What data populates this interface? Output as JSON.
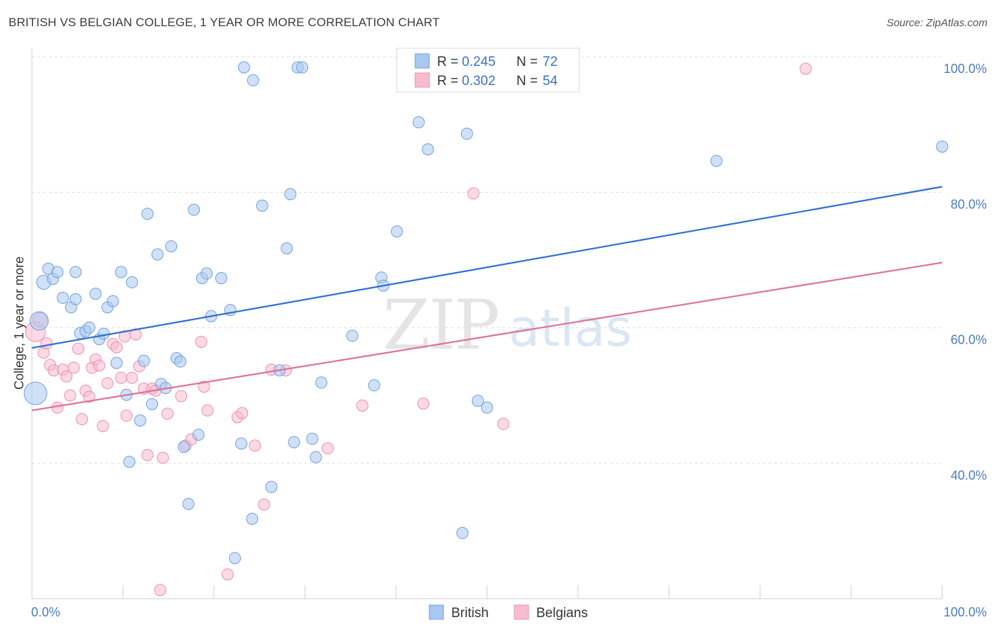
{
  "title": "BRITISH VS BELGIAN COLLEGE, 1 YEAR OR MORE CORRELATION CHART",
  "source": "Source: ZipAtlas.com",
  "watermark": {
    "zip": "ZIP",
    "atlas": "atlas"
  },
  "colors": {
    "british_fill": "#a9c8f0",
    "british_stroke": "#6f9fe0",
    "british_line": "#2f6fd0",
    "belgian_fill": "#f7bcd0",
    "belgian_stroke": "#ea8fae",
    "belgian_line": "#e07098",
    "grid": "#dddddd",
    "axis_label": "#4a7cc7"
  },
  "legend": {
    "rows": [
      {
        "r_label": "R = ",
        "r_value": "0.245",
        "n_label": "N = ",
        "n_value": "72",
        "series": "british"
      },
      {
        "r_label": "R = ",
        "r_value": "0.302",
        "n_label": "N = ",
        "n_value": "54",
        "series": "belgian"
      }
    ]
  },
  "chart_data": {
    "type": "scatter",
    "title": "BRITISH VS BELGIAN COLLEGE, 1 YEAR OR MORE CORRELATION CHART",
    "xlabel": "",
    "ylabel": "College, 1 year or more",
    "xlim": [
      0,
      100
    ],
    "ylim": [
      20,
      102
    ],
    "x_tick_labels": [
      "0.0%",
      "100.0%"
    ],
    "y_ticks": [
      40,
      60,
      80,
      100
    ],
    "y_tick_labels": [
      "40.0%",
      "60.0%",
      "80.0%",
      "100.0%"
    ],
    "grid": true,
    "legend_position": "top-center",
    "series": [
      {
        "name": "British",
        "trend": {
          "x": [
            0,
            100
          ],
          "y": [
            58.8,
            82.6
          ]
        },
        "points": [
          {
            "x": 0.4,
            "y": 52.1,
            "s": 16
          },
          {
            "x": 0.8,
            "y": 62.8,
            "s": 13
          },
          {
            "x": 1.3,
            "y": 68.5,
            "s": 10
          },
          {
            "x": 1.8,
            "y": 70.5,
            "s": 8
          },
          {
            "x": 2.3,
            "y": 69.0,
            "s": 8
          },
          {
            "x": 2.8,
            "y": 70.0,
            "s": 8
          },
          {
            "x": 3.4,
            "y": 66.2,
            "s": 8
          },
          {
            "x": 4.3,
            "y": 64.8,
            "s": 8
          },
          {
            "x": 4.8,
            "y": 70.0,
            "s": 8
          },
          {
            "x": 4.8,
            "y": 66.0,
            "s": 8
          },
          {
            "x": 5.3,
            "y": 61.0,
            "s": 8
          },
          {
            "x": 5.9,
            "y": 61.3,
            "s": 8
          },
          {
            "x": 6.3,
            "y": 61.8,
            "s": 8
          },
          {
            "x": 7.0,
            "y": 66.8,
            "s": 8
          },
          {
            "x": 7.4,
            "y": 60.1,
            "s": 8
          },
          {
            "x": 7.9,
            "y": 60.9,
            "s": 8
          },
          {
            "x": 8.3,
            "y": 64.8,
            "s": 8
          },
          {
            "x": 8.9,
            "y": 65.7,
            "s": 8
          },
          {
            "x": 9.3,
            "y": 56.6,
            "s": 8
          },
          {
            "x": 9.8,
            "y": 70.0,
            "s": 8
          },
          {
            "x": 10.4,
            "y": 51.9,
            "s": 8
          },
          {
            "x": 10.7,
            "y": 42.0,
            "s": 8
          },
          {
            "x": 11.0,
            "y": 68.5,
            "s": 8
          },
          {
            "x": 11.9,
            "y": 48.1,
            "s": 8
          },
          {
            "x": 12.3,
            "y": 56.9,
            "s": 8
          },
          {
            "x": 12.7,
            "y": 78.6,
            "s": 8
          },
          {
            "x": 13.2,
            "y": 50.5,
            "s": 8
          },
          {
            "x": 13.8,
            "y": 72.6,
            "s": 8
          },
          {
            "x": 14.2,
            "y": 53.5,
            "s": 8
          },
          {
            "x": 14.7,
            "y": 52.9,
            "s": 8
          },
          {
            "x": 15.3,
            "y": 73.8,
            "s": 8
          },
          {
            "x": 15.9,
            "y": 57.3,
            "s": 8
          },
          {
            "x": 16.3,
            "y": 56.8,
            "s": 8
          },
          {
            "x": 16.7,
            "y": 44.2,
            "s": 8
          },
          {
            "x": 17.2,
            "y": 35.8,
            "s": 8
          },
          {
            "x": 17.8,
            "y": 79.2,
            "s": 8
          },
          {
            "x": 18.3,
            "y": 46.0,
            "s": 8
          },
          {
            "x": 18.7,
            "y": 69.1,
            "s": 8
          },
          {
            "x": 19.2,
            "y": 69.8,
            "s": 8
          },
          {
            "x": 19.7,
            "y": 63.5,
            "s": 8
          },
          {
            "x": 20.8,
            "y": 69.1,
            "s": 8
          },
          {
            "x": 21.8,
            "y": 64.4,
            "s": 8
          },
          {
            "x": 22.3,
            "y": 27.8,
            "s": 8
          },
          {
            "x": 23.0,
            "y": 44.7,
            "s": 8
          },
          {
            "x": 23.3,
            "y": 100.2,
            "s": 8
          },
          {
            "x": 24.2,
            "y": 33.6,
            "s": 8
          },
          {
            "x": 24.3,
            "y": 98.3,
            "s": 8
          },
          {
            "x": 25.3,
            "y": 79.8,
            "s": 8
          },
          {
            "x": 26.3,
            "y": 38.3,
            "s": 8
          },
          {
            "x": 27.2,
            "y": 55.5,
            "s": 8
          },
          {
            "x": 28.0,
            "y": 73.5,
            "s": 8
          },
          {
            "x": 28.4,
            "y": 81.5,
            "s": 8
          },
          {
            "x": 28.8,
            "y": 44.9,
            "s": 8
          },
          {
            "x": 29.2,
            "y": 100.2,
            "s": 8
          },
          {
            "x": 29.7,
            "y": 100.2,
            "s": 8
          },
          {
            "x": 30.8,
            "y": 45.4,
            "s": 8
          },
          {
            "x": 31.2,
            "y": 42.7,
            "s": 8
          },
          {
            "x": 31.8,
            "y": 53.7,
            "s": 8
          },
          {
            "x": 35.2,
            "y": 60.6,
            "s": 8
          },
          {
            "x": 37.6,
            "y": 53.3,
            "s": 8
          },
          {
            "x": 38.4,
            "y": 69.2,
            "s": 8
          },
          {
            "x": 38.6,
            "y": 68.0,
            "s": 8
          },
          {
            "x": 40.1,
            "y": 76.0,
            "s": 8
          },
          {
            "x": 42.5,
            "y": 92.1,
            "s": 8
          },
          {
            "x": 43.5,
            "y": 88.1,
            "s": 8
          },
          {
            "x": 47.3,
            "y": 31.5,
            "s": 8
          },
          {
            "x": 47.8,
            "y": 90.4,
            "s": 8
          },
          {
            "x": 49.0,
            "y": 51.0,
            "s": 8
          },
          {
            "x": 50.0,
            "y": 50.0,
            "s": 8
          },
          {
            "x": 52.0,
            "y": 100.2,
            "s": 8
          },
          {
            "x": 75.2,
            "y": 86.4,
            "s": 8
          },
          {
            "x": 100.0,
            "y": 88.5,
            "s": 8
          }
        ]
      },
      {
        "name": "Belgians",
        "trend": {
          "x": [
            0,
            100
          ],
          "y": [
            49.6,
            71.4
          ]
        },
        "points": [
          {
            "x": 0.4,
            "y": 61.2,
            "s": 14
          },
          {
            "x": 0.9,
            "y": 63.0,
            "s": 10
          },
          {
            "x": 1.3,
            "y": 58.1,
            "s": 8
          },
          {
            "x": 1.6,
            "y": 59.5,
            "s": 8
          },
          {
            "x": 2.0,
            "y": 56.3,
            "s": 8
          },
          {
            "x": 2.4,
            "y": 55.5,
            "s": 8
          },
          {
            "x": 2.8,
            "y": 50.0,
            "s": 8
          },
          {
            "x": 3.4,
            "y": 55.6,
            "s": 8
          },
          {
            "x": 3.8,
            "y": 54.6,
            "s": 8
          },
          {
            "x": 4.2,
            "y": 51.8,
            "s": 8
          },
          {
            "x": 4.6,
            "y": 55.9,
            "s": 8
          },
          {
            "x": 5.1,
            "y": 58.7,
            "s": 8
          },
          {
            "x": 5.5,
            "y": 48.3,
            "s": 8
          },
          {
            "x": 5.9,
            "y": 52.5,
            "s": 8
          },
          {
            "x": 6.3,
            "y": 51.6,
            "s": 8
          },
          {
            "x": 6.6,
            "y": 55.9,
            "s": 8
          },
          {
            "x": 7.0,
            "y": 57.1,
            "s": 8
          },
          {
            "x": 7.4,
            "y": 56.2,
            "s": 8
          },
          {
            "x": 7.8,
            "y": 47.3,
            "s": 8
          },
          {
            "x": 8.3,
            "y": 53.6,
            "s": 8
          },
          {
            "x": 8.9,
            "y": 59.4,
            "s": 8
          },
          {
            "x": 9.3,
            "y": 58.9,
            "s": 8
          },
          {
            "x": 9.8,
            "y": 54.4,
            "s": 8
          },
          {
            "x": 10.2,
            "y": 60.5,
            "s": 8
          },
          {
            "x": 10.4,
            "y": 48.8,
            "s": 8
          },
          {
            "x": 11.0,
            "y": 54.4,
            "s": 8
          },
          {
            "x": 11.4,
            "y": 60.8,
            "s": 8
          },
          {
            "x": 11.8,
            "y": 56.1,
            "s": 8
          },
          {
            "x": 12.3,
            "y": 52.8,
            "s": 8
          },
          {
            "x": 12.7,
            "y": 43.0,
            "s": 8
          },
          {
            "x": 13.2,
            "y": 52.8,
            "s": 8
          },
          {
            "x": 13.6,
            "y": 52.5,
            "s": 8
          },
          {
            "x": 14.1,
            "y": 23.1,
            "s": 8
          },
          {
            "x": 14.4,
            "y": 42.6,
            "s": 8
          },
          {
            "x": 14.9,
            "y": 49.1,
            "s": 8
          },
          {
            "x": 16.4,
            "y": 51.7,
            "s": 8
          },
          {
            "x": 16.9,
            "y": 44.4,
            "s": 8
          },
          {
            "x": 17.5,
            "y": 45.3,
            "s": 8
          },
          {
            "x": 18.6,
            "y": 59.7,
            "s": 8
          },
          {
            "x": 18.9,
            "y": 53.1,
            "s": 8
          },
          {
            "x": 19.3,
            "y": 49.6,
            "s": 8
          },
          {
            "x": 21.5,
            "y": 25.4,
            "s": 8
          },
          {
            "x": 22.6,
            "y": 48.6,
            "s": 8
          },
          {
            "x": 23.1,
            "y": 49.2,
            "s": 8
          },
          {
            "x": 24.5,
            "y": 44.4,
            "s": 8
          },
          {
            "x": 25.5,
            "y": 35.7,
            "s": 8
          },
          {
            "x": 26.3,
            "y": 55.6,
            "s": 8
          },
          {
            "x": 27.9,
            "y": 55.5,
            "s": 8
          },
          {
            "x": 32.5,
            "y": 44.0,
            "s": 8
          },
          {
            "x": 36.3,
            "y": 50.3,
            "s": 8
          },
          {
            "x": 43.0,
            "y": 50.6,
            "s": 8
          },
          {
            "x": 48.5,
            "y": 81.6,
            "s": 8
          },
          {
            "x": 51.8,
            "y": 47.6,
            "s": 8
          },
          {
            "x": 85.0,
            "y": 100.0,
            "s": 8
          }
        ]
      }
    ]
  }
}
